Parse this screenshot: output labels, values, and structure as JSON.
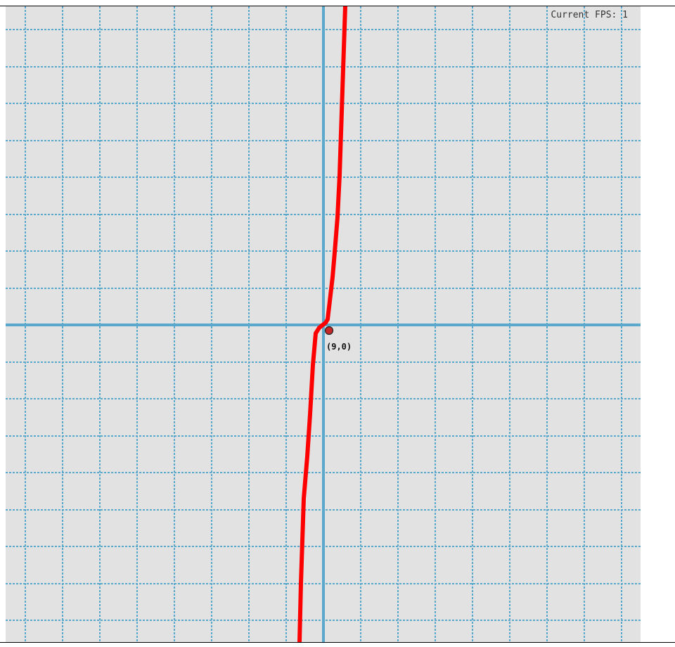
{
  "fps": {
    "label": "Current FPS:",
    "value": "1"
  },
  "point": {
    "label": "(9,0)"
  },
  "colors": {
    "background": "#e2e2e2",
    "grid": "#5aa9cc",
    "axis": "#5aa9cc",
    "curve": "#ff0000",
    "point_fill": "#c62828"
  },
  "chart_data": {
    "type": "line",
    "grid": true,
    "series": [
      {
        "function": "steep increasing curve through point",
        "color": "#ff0000"
      }
    ],
    "annotations": [
      "(9,0)"
    ]
  }
}
